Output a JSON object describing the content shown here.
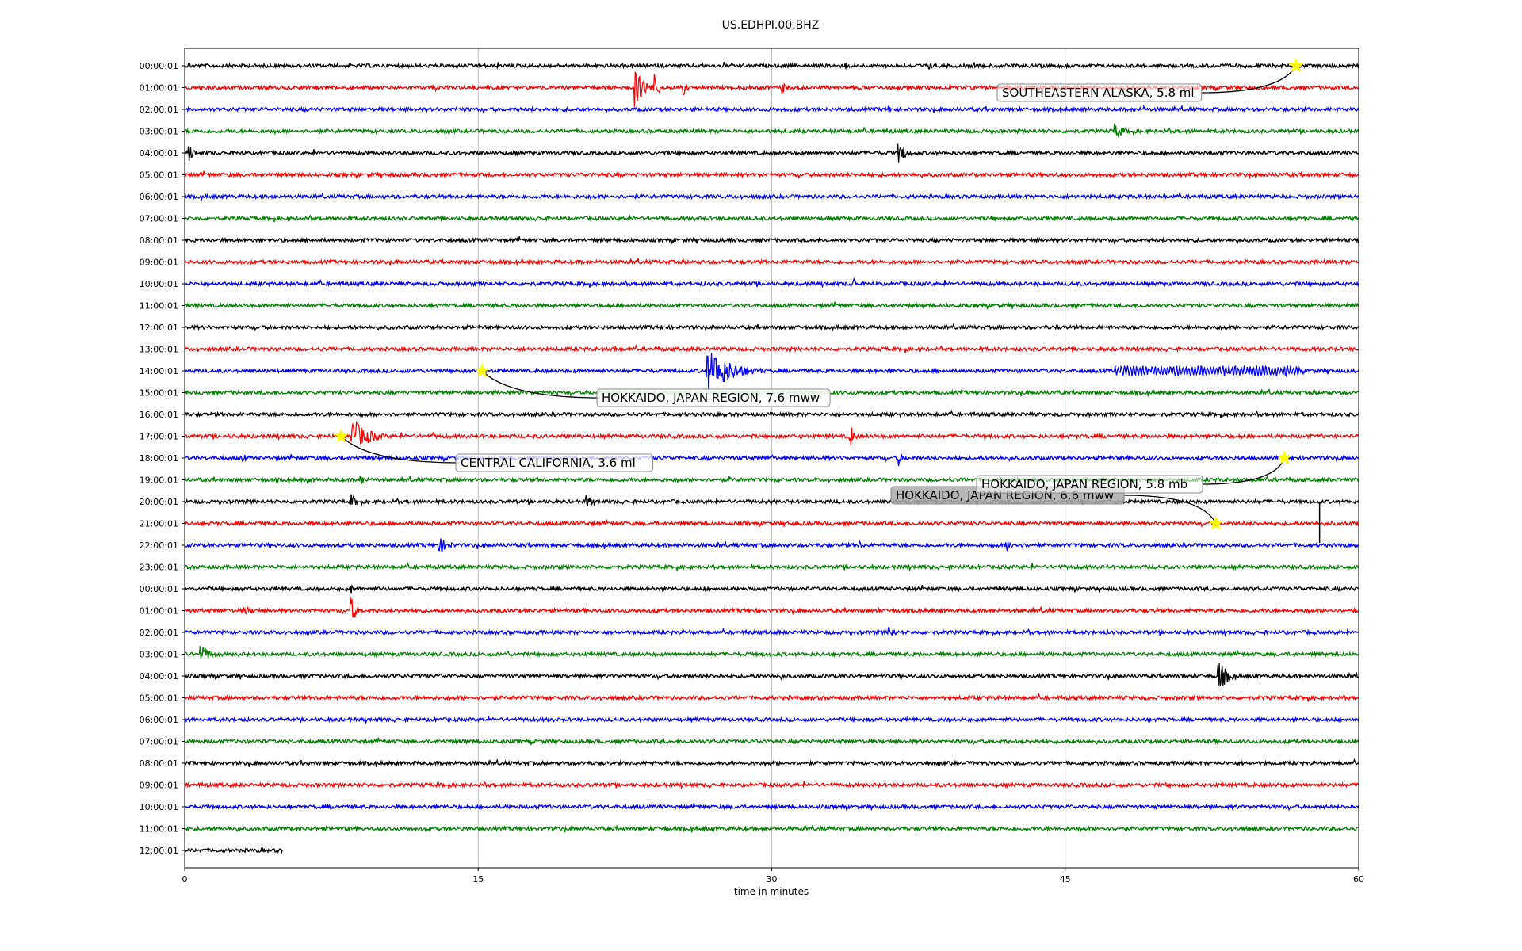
{
  "chart_data": {
    "type": "line",
    "title": "US.EDHPI.00.BHZ",
    "xlabel": "time in minutes",
    "ylabel": "",
    "xlim": [
      0,
      60
    ],
    "xticks": [
      0,
      15,
      30,
      45,
      60
    ],
    "grid": "vertical",
    "trace_colors": [
      "#000000",
      "#ff0000",
      "#0000ff",
      "#008000"
    ],
    "row_labels": [
      "00:00:01",
      "01:00:01",
      "02:00:01",
      "03:00:01",
      "04:00:01",
      "05:00:01",
      "06:00:01",
      "07:00:01",
      "08:00:01",
      "09:00:01",
      "10:00:01",
      "11:00:01",
      "12:00:01",
      "13:00:01",
      "14:00:01",
      "15:00:01",
      "16:00:01",
      "17:00:01",
      "18:00:01",
      "19:00:01",
      "20:00:01",
      "21:00:01",
      "22:00:01",
      "23:00:01",
      "00:00:01",
      "01:00:01",
      "02:00:01",
      "03:00:01",
      "04:00:01",
      "05:00:01",
      "06:00:01",
      "07:00:01",
      "08:00:01",
      "09:00:01",
      "10:00:01",
      "11:00:01",
      "12:00:01"
    ],
    "last_row_end_minute": 5,
    "events": [
      {
        "row": 0,
        "minute": 56.8,
        "label": "SOUTHEASTERN ALASKA, 5.8 ml"
      },
      {
        "row": 14,
        "minute": 15.2,
        "label": "HOKKAIDO, JAPAN REGION, 7.6 mww"
      },
      {
        "row": 17,
        "minute": 8.0,
        "label": "CENTRAL CALIFORNIA, 3.6 ml"
      },
      {
        "row": 18,
        "minute": 56.2,
        "label": "HOKKAIDO, JAPAN REGION, 5.8 mb"
      },
      {
        "row": 21,
        "minute": 52.7,
        "label": "HOKKAIDO, JAPAN REGION, 6.6 mww"
      }
    ],
    "star_color": "#ffff00",
    "signals": [
      {
        "row": 0,
        "minute": 38,
        "amp": 8,
        "dur": 0.5
      },
      {
        "row": 0,
        "minute": 33.8,
        "amp": 6,
        "dur": 0.4
      },
      {
        "row": 0,
        "minute": 16,
        "amp": 5,
        "dur": 0.4
      },
      {
        "row": 0,
        "minute": 0.2,
        "amp": 7,
        "dur": 0.3
      },
      {
        "row": 1,
        "minute": 23,
        "amp": 25,
        "dur": 1.2
      },
      {
        "row": 1,
        "minute": 24,
        "amp": 20,
        "dur": 0.6
      },
      {
        "row": 1,
        "minute": 25.5,
        "amp": 10,
        "dur": 0.5
      },
      {
        "row": 1,
        "minute": 30.5,
        "amp": 10,
        "dur": 0.6
      },
      {
        "row": 2,
        "minute": 36,
        "amp": 6,
        "dur": 0.4
      },
      {
        "row": 2,
        "minute": 49,
        "amp": 5,
        "dur": 0.3
      },
      {
        "row": 3,
        "minute": 47.5,
        "amp": 10,
        "dur": 1.5
      },
      {
        "row": 4,
        "minute": 0.2,
        "amp": 14,
        "dur": 0.6
      },
      {
        "row": 4,
        "minute": 36.5,
        "amp": 18,
        "dur": 0.8
      },
      {
        "row": 10,
        "minute": 34.2,
        "amp": 8,
        "dur": 0.4
      },
      {
        "row": 13,
        "minute": 22,
        "amp": 6,
        "dur": 0.5
      },
      {
        "row": 14,
        "minute": 26.7,
        "amp": 30,
        "dur": 3
      },
      {
        "row": 14,
        "minute": 36,
        "amp": 4,
        "dur": 1.5
      },
      {
        "row": 17,
        "minute": 8.5,
        "amp": 25,
        "dur": 2
      },
      {
        "row": 17,
        "minute": 34,
        "amp": 18,
        "dur": 0.5
      },
      {
        "row": 17,
        "minute": 12.7,
        "amp": 6,
        "dur": 0.3
      },
      {
        "row": 18,
        "minute": 3,
        "amp": 8,
        "dur": 0.3
      },
      {
        "row": 18,
        "minute": 36.5,
        "amp": 10,
        "dur": 0.5
      },
      {
        "row": 18,
        "minute": 30,
        "amp": 6,
        "dur": 0.3
      },
      {
        "row": 19,
        "minute": 9,
        "amp": 8,
        "dur": 0.6
      },
      {
        "row": 19,
        "minute": 6.3,
        "amp": 6,
        "dur": 0.3
      },
      {
        "row": 19,
        "minute": 27.8,
        "amp": 6,
        "dur": 0.3
      },
      {
        "row": 20,
        "minute": 8.5,
        "amp": 10,
        "dur": 0.8
      },
      {
        "row": 20,
        "minute": 20.5,
        "amp": 10,
        "dur": 0.8
      },
      {
        "row": 22,
        "minute": 13,
        "amp": 10,
        "dur": 1.5
      },
      {
        "row": 22,
        "minute": 42,
        "amp": 8,
        "dur": 1.2
      },
      {
        "row": 22,
        "minute": 34.5,
        "amp": 6,
        "dur": 0.3
      },
      {
        "row": 24,
        "minute": 8.5,
        "amp": 8,
        "dur": 0.3
      },
      {
        "row": 25,
        "minute": 8.5,
        "amp": 20,
        "dur": 0.6
      },
      {
        "row": 25,
        "minute": 3,
        "amp": 6,
        "dur": 2
      },
      {
        "row": 26,
        "minute": 36,
        "amp": 10,
        "dur": 0.8
      },
      {
        "row": 27,
        "minute": 0.8,
        "amp": 12,
        "dur": 1.5
      },
      {
        "row": 27,
        "minute": 16.5,
        "amp": 6,
        "dur": 0.4
      },
      {
        "row": 28,
        "minute": 52.8,
        "amp": 22,
        "dur": 1.2
      },
      {
        "row": 28,
        "minute": 30.5,
        "amp": 6,
        "dur": 0.3
      }
    ]
  }
}
